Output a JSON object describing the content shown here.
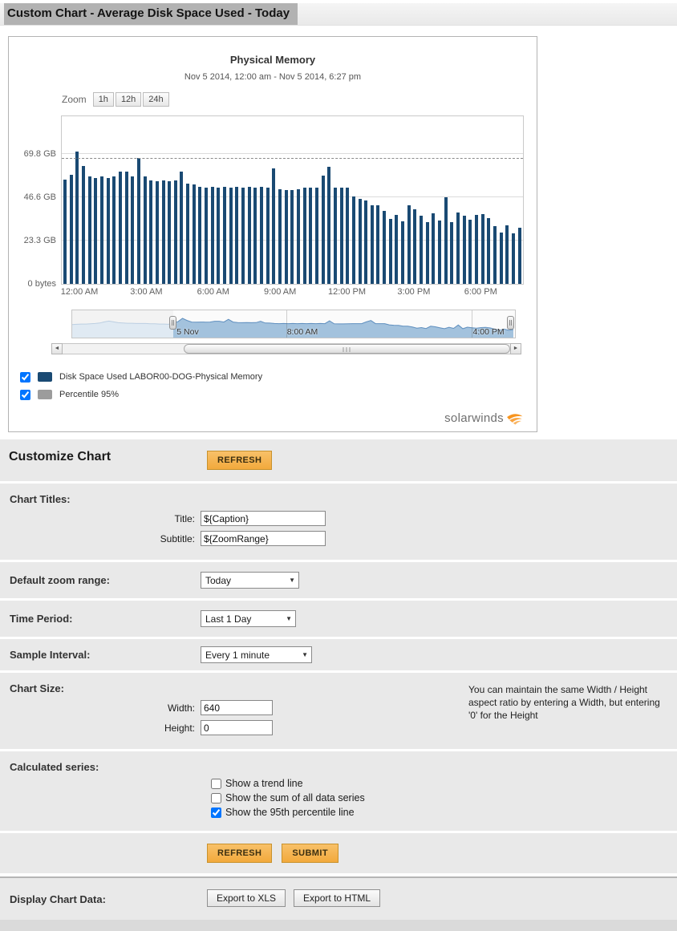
{
  "page": {
    "title": "Custom Chart - Average Disk Space Used - Today"
  },
  "icons": {
    "select_arrow": "▼",
    "scroll_left": "◄",
    "scroll_right": "►"
  },
  "chart_panel": {
    "title": "Physical Memory",
    "subtitle": "Nov 5 2014, 12:00 am - Nov 5 2014, 6:27 pm",
    "zoom_label": "Zoom",
    "zoom_buttons": [
      "1h",
      "12h",
      "24h"
    ],
    "legend": [
      {
        "label": "Disk Space Used LABOR00-DOG-Physical Memory",
        "color": "#1a4a73",
        "checked": true
      },
      {
        "label": "Percentile 95%",
        "color": "#9c9c9c",
        "checked": true
      }
    ],
    "logo_text": "solarwinds",
    "navigator": {
      "labels": [
        {
          "text": "5 Nov",
          "pct": 23.6
        },
        {
          "text": "8:00 AM",
          "pct": 48.5
        },
        {
          "text": "4:00 PM",
          "pct": 90.5
        }
      ],
      "gridline_pcts": [
        48.3,
        90.2
      ],
      "pre_values_gb": [
        48,
        49,
        50,
        50,
        51,
        52,
        54,
        58,
        61,
        58,
        55,
        54,
        53,
        53,
        52,
        52,
        52,
        51,
        51,
        50,
        50,
        49
      ]
    }
  },
  "chart_data": {
    "type": "bar",
    "title": "Physical Memory",
    "subtitle": "Nov 5 2014, 12:00 am - Nov 5 2014, 6:27 pm",
    "xlabel": "",
    "ylabel": "",
    "x_start": "Nov 5 2014, 12:00 AM",
    "x_interval_minutes": 15,
    "xticks": [
      "12:00 AM",
      "3:00 AM",
      "6:00 AM",
      "9:00 AM",
      "12:00 PM",
      "3:00 PM",
      "6:00 PM"
    ],
    "yticks": [
      "0 bytes",
      "23.3 GB",
      "46.6 GB",
      "69.8 GB"
    ],
    "ytick_values_gb": [
      0,
      23.3,
      46.6,
      69.8
    ],
    "ylim": [
      0,
      90
    ],
    "grid": true,
    "legend_position": "bottom",
    "percentile_95_gb": 67,
    "series": [
      {
        "name": "Disk Space Used LABOR00-DOG-Physical Memory",
        "color": "#1a4a73",
        "values_gb": [
          56,
          58.5,
          71,
          63.5,
          57.5,
          57,
          57.5,
          57,
          57.5,
          60.5,
          60.5,
          57.5,
          67.5,
          57.5,
          55.5,
          55,
          55.5,
          55,
          55.5,
          60.5,
          54,
          53.5,
          52,
          51.5,
          52,
          51.5,
          52,
          51.5,
          52,
          51.5,
          52,
          51.5,
          52,
          51.5,
          62,
          51,
          50.5,
          50.5,
          51,
          51.5,
          51.5,
          51.5,
          58,
          63,
          51.5,
          51.5,
          51.5,
          47,
          45.5,
          45,
          42,
          42,
          39,
          35,
          37,
          33.5,
          42,
          40,
          36.5,
          33,
          38,
          34,
          46.5,
          33,
          38.5,
          36.5,
          34.5,
          37,
          37.5,
          35.5,
          31,
          27.5,
          31.5,
          27,
          30
        ]
      }
    ]
  },
  "form": {
    "heading": "Customize Chart",
    "refresh_label": "REFRESH",
    "submit_label": "SUBMIT",
    "chart_titles": {
      "label": "Chart Titles:",
      "title_label": "Title:",
      "title_value": "${Caption}",
      "subtitle_label": "Subtitle:",
      "subtitle_value": "${ZoomRange}"
    },
    "default_zoom": {
      "label": "Default zoom range:",
      "value": "Today"
    },
    "time_period": {
      "label": "Time Period:",
      "value": "Last 1 Day"
    },
    "sample_interval": {
      "label": "Sample Interval:",
      "value": "Every 1 minute"
    },
    "chart_size": {
      "label": "Chart Size:",
      "width_label": "Width:",
      "width_value": "640",
      "height_label": "Height:",
      "height_value": "0",
      "note": "You can maintain the same Width / Height aspect ratio by entering a Width, but entering '0' for the Height"
    },
    "calculated_series": {
      "label": "Calculated series:",
      "options": [
        {
          "label": "Show a trend line",
          "checked": false
        },
        {
          "label": "Show the sum of all data series",
          "checked": false
        },
        {
          "label": "Show the 95th percentile line",
          "checked": true
        }
      ]
    },
    "display_chart_data": {
      "label": "Display Chart Data:",
      "export_xls_label": "Export to XLS",
      "export_html_label": "Export to HTML"
    }
  }
}
